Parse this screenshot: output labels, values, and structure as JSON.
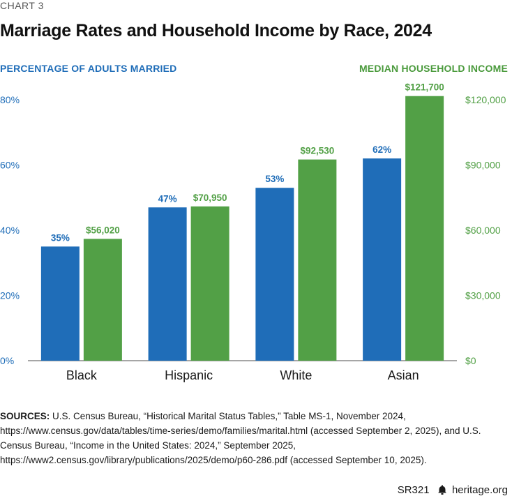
{
  "header": {
    "chart_label": "CHART 3",
    "title": "Marriage Rates and Household Income by Race, 2024"
  },
  "colors": {
    "married": "#1f6db8",
    "income": "#52a046",
    "axis": "#888888",
    "text": "#1a1a1a"
  },
  "chart_data": {
    "type": "bar",
    "title": "Marriage Rates and Household Income by Race, 2024",
    "categories": [
      "Black",
      "Hispanic",
      "White",
      "Asian"
    ],
    "left_axis": {
      "label": "PERCENTAGE OF ADULTS MARRIED",
      "ylim": [
        0,
        80
      ],
      "ticks": [
        "0%",
        "20%",
        "40%",
        "60%",
        "80%"
      ]
    },
    "right_axis": {
      "label": "MEDIAN HOUSEHOLD INCOME",
      "ylim": [
        0,
        120000
      ],
      "ticks": [
        "$0",
        "$30,000",
        "$60,000",
        "$90,000",
        "$120,000"
      ]
    },
    "series": [
      {
        "name": "PERCENTAGE OF ADULTS MARRIED",
        "axis": "left",
        "values": [
          35,
          47,
          53,
          62
        ],
        "labels": [
          "35%",
          "47%",
          "53%",
          "62%"
        ]
      },
      {
        "name": "MEDIAN HOUSEHOLD INCOME",
        "axis": "right",
        "values": [
          56020,
          70950,
          92530,
          121700
        ],
        "labels": [
          "$56,020",
          "$70,950",
          "$92,530",
          "$121,700"
        ]
      }
    ],
    "grid": false
  },
  "sources": {
    "label": "SOURCES:",
    "text": "U.S. Census Bureau, “Historical Marital Status Tables,” Table MS-1, November 2024, https://www.census.gov/data/tables/time-series/demo/families/marital.html (accessed September 2, 2025), and U.S. Census Bureau, “Income in the United States: 2024,” September 2025, https://www2.census.gov/library/publications/2025/demo/p60-286.pdf (accessed September 10, 2025)."
  },
  "footer": {
    "report_id": "SR321",
    "site": "heritage.org",
    "logo_icon": "bell-logo-icon"
  }
}
